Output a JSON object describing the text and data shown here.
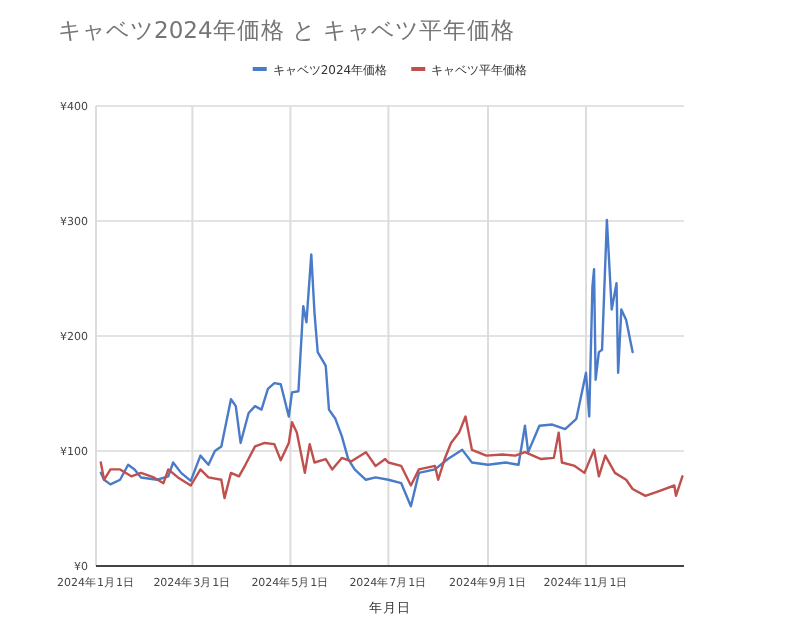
{
  "chart_data": {
    "type": "line",
    "title": "キャベツ2024年価格 と キャベツ平年価格",
    "xlabel": "年月日",
    "xlim": [
      "2024-01-01",
      "2025-01-01"
    ],
    "xticks": [
      {
        "value": "2024-01-01",
        "label": "2024年1月1日"
      },
      {
        "value": "2024-03-01",
        "label": "2024年3月1日"
      },
      {
        "value": "2024-05-01",
        "label": "2024年5月1日"
      },
      {
        "value": "2024-07-01",
        "label": "2024年7月1日"
      },
      {
        "value": "2024-09-01",
        "label": "2024年9月1日"
      },
      {
        "value": "2024-11-01",
        "label": "2024年11月1日"
      }
    ],
    "ylim": [
      0,
      400
    ],
    "yticks": [
      {
        "value": 0,
        "label": "¥0"
      },
      {
        "value": 100,
        "label": "¥100"
      },
      {
        "value": 200,
        "label": "¥200"
      },
      {
        "value": 300,
        "label": "¥300"
      },
      {
        "value": 400,
        "label": "¥400"
      }
    ],
    "grid": true,
    "legend": "top",
    "line_style": "solid",
    "series": [
      {
        "name": "キャベツ2024年価格",
        "color": "#4a7bc8",
        "x": [
          "2024-01-04",
          "2024-01-06",
          "2024-01-10",
          "2024-01-16",
          "2024-01-21",
          "2024-01-25",
          "2024-01-29",
          "2024-02-08",
          "2024-02-15",
          "2024-02-18",
          "2024-02-23",
          "2024-02-29",
          "2024-03-06",
          "2024-03-11",
          "2024-03-15",
          "2024-03-19",
          "2024-03-25",
          "2024-03-28",
          "2024-03-31",
          "2024-04-05",
          "2024-04-09",
          "2024-04-13",
          "2024-04-17",
          "2024-04-21",
          "2024-04-25",
          "2024-04-30",
          "2024-05-02",
          "2024-05-06",
          "2024-05-09",
          "2024-05-11",
          "2024-05-14",
          "2024-05-16",
          "2024-05-18",
          "2024-05-23",
          "2024-05-25",
          "2024-05-29",
          "2024-06-02",
          "2024-06-06",
          "2024-06-10",
          "2024-06-17",
          "2024-06-23",
          "2024-07-01",
          "2024-07-09",
          "2024-07-15",
          "2024-07-20",
          "2024-07-30",
          "2024-08-07",
          "2024-08-16",
          "2024-08-22",
          "2024-09-01",
          "2024-09-12",
          "2024-09-20",
          "2024-09-24",
          "2024-09-26",
          "2024-10-03",
          "2024-10-11",
          "2024-10-19",
          "2024-10-26",
          "2024-11-01",
          "2024-11-03",
          "2024-11-05",
          "2024-11-06",
          "2024-11-07",
          "2024-11-09",
          "2024-11-11",
          "2024-11-14",
          "2024-11-17",
          "2024-11-20",
          "2024-11-21",
          "2024-11-23",
          "2024-11-26",
          "2024-11-30"
        ],
        "values": [
          81,
          75,
          71,
          75,
          88,
          84,
          77,
          75,
          78,
          90,
          81,
          74,
          96,
          88,
          100,
          104,
          145,
          139,
          107,
          133,
          139,
          136,
          154,
          159,
          158,
          130,
          151,
          152,
          226,
          212,
          271,
          220,
          186,
          174,
          136,
          128,
          113,
          93,
          84,
          75,
          77,
          75,
          72,
          52,
          81,
          84,
          93,
          101,
          90,
          88,
          90,
          88,
          122,
          99,
          122,
          123,
          119,
          128,
          168,
          130,
          243,
          258,
          162,
          186,
          188,
          301,
          223,
          246,
          168,
          223,
          214,
          186
        ]
      },
      {
        "name": "キャベツ平年価格",
        "color": "#c0504d",
        "x": [
          "2024-01-04",
          "2024-01-06",
          "2024-01-10",
          "2024-01-16",
          "2024-01-23",
          "2024-01-29",
          "2024-02-06",
          "2024-02-12",
          "2024-02-15",
          "2024-02-21",
          "2024-02-29",
          "2024-03-06",
          "2024-03-11",
          "2024-03-19",
          "2024-03-21",
          "2024-03-25",
          "2024-03-30",
          "2024-04-03",
          "2024-04-09",
          "2024-04-15",
          "2024-04-21",
          "2024-04-25",
          "2024-04-30",
          "2024-05-02",
          "2024-05-05",
          "2024-05-10",
          "2024-05-13",
          "2024-05-16",
          "2024-05-23",
          "2024-05-27",
          "2024-06-02",
          "2024-06-08",
          "2024-06-17",
          "2024-06-23",
          "2024-06-29",
          "2024-07-01",
          "2024-07-09",
          "2024-07-15",
          "2024-07-20",
          "2024-07-30",
          "2024-08-01",
          "2024-08-05",
          "2024-08-09",
          "2024-08-14",
          "2024-08-18",
          "2024-08-22",
          "2024-08-31",
          "2024-09-10",
          "2024-09-18",
          "2024-09-24",
          "2024-10-04",
          "2024-10-12",
          "2024-10-15",
          "2024-10-17",
          "2024-10-25",
          "2024-10-31",
          "2024-11-06",
          "2024-11-09",
          "2024-11-13",
          "2024-11-19",
          "2024-11-26",
          "2024-11-30",
          "2024-12-08",
          "2024-12-16",
          "2024-12-26",
          "2024-12-27",
          "2024-12-31"
        ],
        "values": [
          90,
          75,
          84,
          84,
          78,
          81,
          77,
          72,
          84,
          77,
          70,
          84,
          77,
          75,
          59,
          81,
          78,
          88,
          104,
          107,
          106,
          92,
          107,
          125,
          116,
          81,
          106,
          90,
          93,
          84,
          94,
          91,
          99,
          87,
          93,
          90,
          87,
          70,
          84,
          87,
          75,
          93,
          107,
          116,
          130,
          101,
          96,
          97,
          96,
          99,
          93,
          94,
          116,
          90,
          87,
          81,
          101,
          78,
          96,
          81,
          75,
          67,
          61,
          65,
          70,
          61,
          78
        ]
      }
    ]
  }
}
